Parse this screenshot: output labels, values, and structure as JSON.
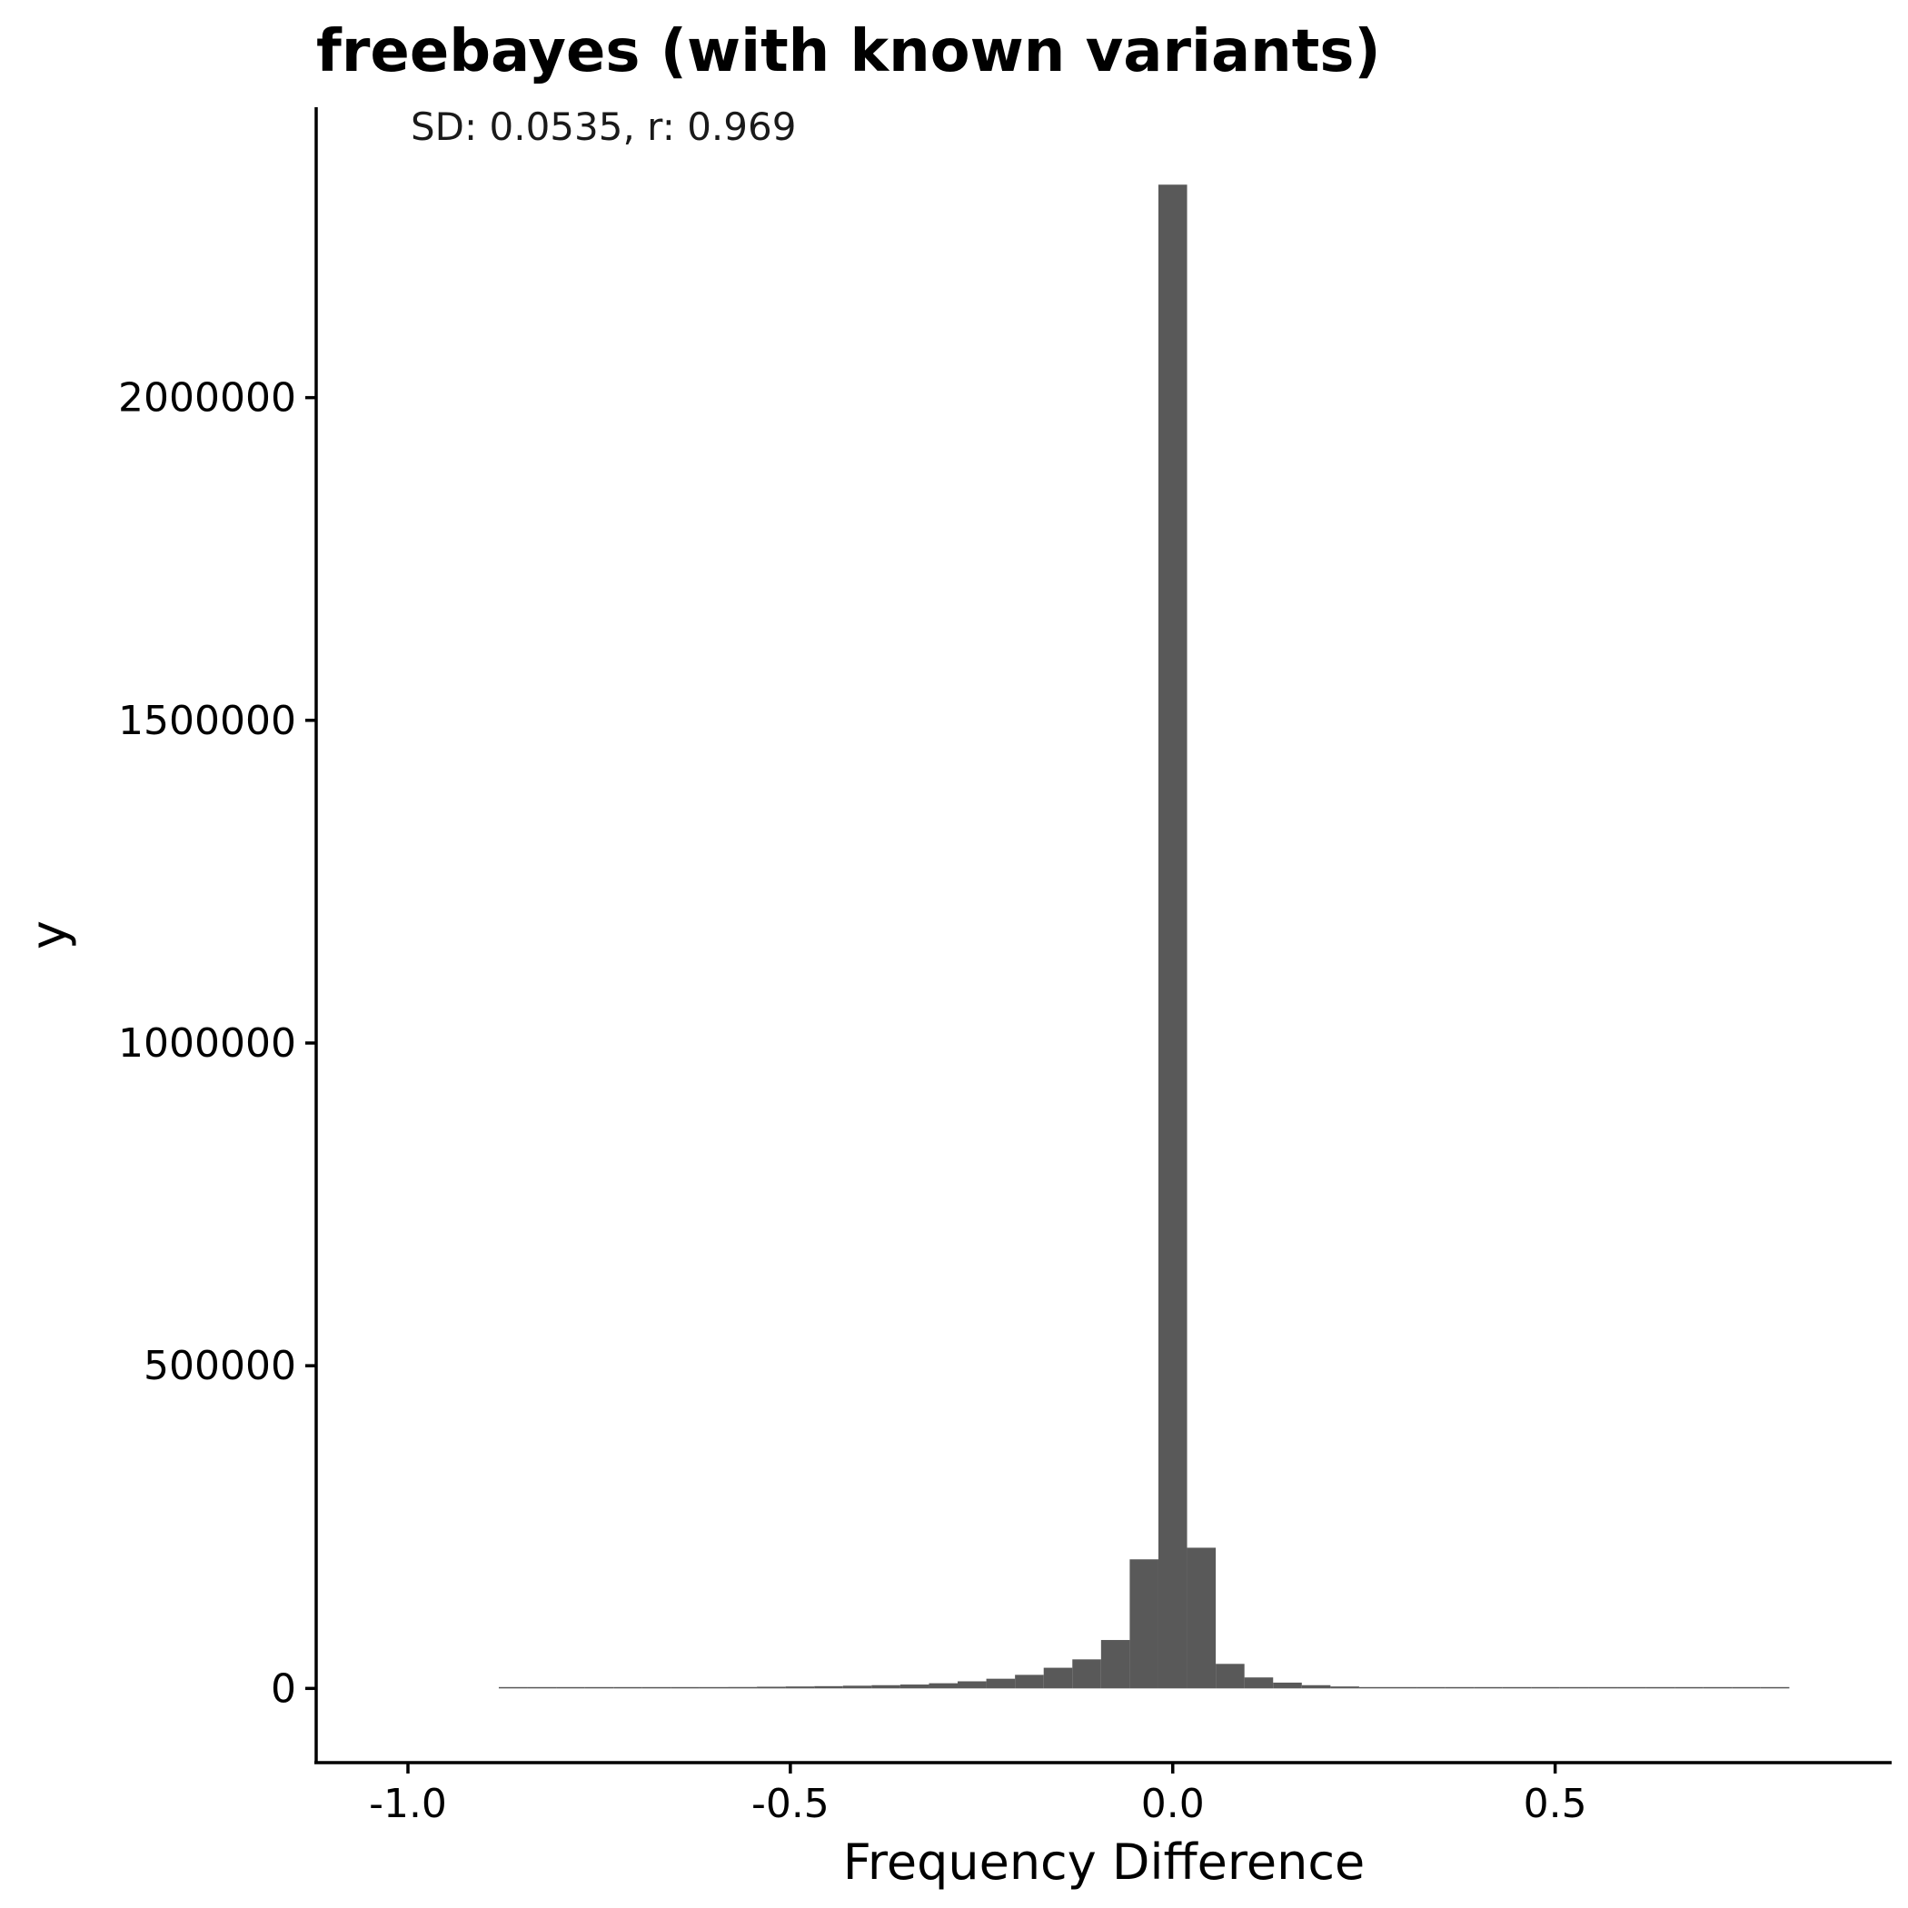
{
  "chart_data": {
    "type": "bar",
    "title": "freebayes (with known variants)",
    "annotation": "SD: 0.0535, r: 0.969",
    "xlabel": "Frequency Difference",
    "ylabel": "y",
    "xlim": [
      -1.12,
      0.94
    ],
    "ylim": [
      -115000,
      2450000
    ],
    "x_ticks": [
      {
        "value": -1.0,
        "label": "-1.0"
      },
      {
        "value": -0.5,
        "label": "-0.5"
      },
      {
        "value": 0.0,
        "label": "0.0"
      },
      {
        "value": 0.5,
        "label": "0.5"
      }
    ],
    "y_ticks": [
      {
        "value": 0,
        "label": "0"
      },
      {
        "value": 500000,
        "label": "500000"
      },
      {
        "value": 1000000,
        "label": "1000000"
      },
      {
        "value": 1500000,
        "label": "1500000"
      },
      {
        "value": 2000000,
        "label": "2000000"
      }
    ],
    "bin_width": 0.0375,
    "bin_centers": [
      -0.8625,
      -0.825,
      -0.7875,
      -0.75,
      -0.7125,
      -0.675,
      -0.6375,
      -0.6,
      -0.5625,
      -0.525,
      -0.4875,
      -0.45,
      -0.4125,
      -0.375,
      -0.3375,
      -0.3,
      -0.2625,
      -0.225,
      -0.1875,
      -0.15,
      -0.1125,
      -0.075,
      -0.0375,
      0.0,
      0.0375,
      0.075,
      0.1125,
      0.15,
      0.1875,
      0.225,
      0.2625,
      0.3,
      0.3375,
      0.375,
      0.4125,
      0.45,
      0.4875,
      0.525,
      0.5625,
      0.6,
      0.6375,
      0.675,
      0.7125,
      0.75,
      0.7875
    ],
    "values": [
      300,
      400,
      500,
      800,
      1000,
      1200,
      1500,
      1800,
      2200,
      2600,
      3000,
      3500,
      4200,
      5000,
      6000,
      8000,
      11000,
      15000,
      21000,
      32000,
      45000,
      75000,
      200000,
      2330000,
      218000,
      38000,
      17000,
      9000,
      5000,
      3000,
      2000,
      1500,
      1200,
      1000,
      800,
      600,
      500,
      400,
      350,
      300,
      250,
      200,
      150,
      120,
      100
    ],
    "bar_color": "#595959",
    "grid": false,
    "legend": "none"
  }
}
